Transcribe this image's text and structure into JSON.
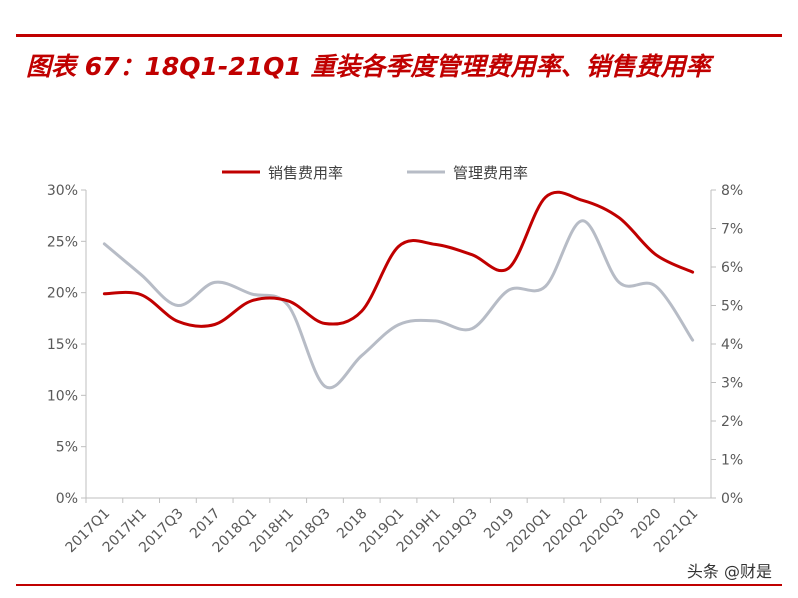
{
  "title": "图表 67：18Q1-21Q1 重装各季度管理费用率、销售费用率",
  "watermark": "头条 @财是",
  "colors": {
    "accent": "#c00000",
    "sales": "#c00000",
    "admin": "#b7bcc6",
    "axis": "#bfbfbf",
    "text": "#595959"
  },
  "chart_data": {
    "type": "line",
    "categories": [
      "2017Q1",
      "2017H1",
      "2017Q3",
      "2017",
      "2018Q1",
      "2018H1",
      "2018Q3",
      "2018",
      "2019Q1",
      "2019H1",
      "2019Q3",
      "2019",
      "2020Q1",
      "2020Q2",
      "2020Q3",
      "2020",
      "2021Q1"
    ],
    "series": [
      {
        "name": "销售费用率",
        "axis": "left",
        "values": [
          19.9,
          19.8,
          17.2,
          16.9,
          19.2,
          19.2,
          17.0,
          18.2,
          24.5,
          24.7,
          23.7,
          22.4,
          29.3,
          29.0,
          27.3,
          23.7,
          22.0
        ]
      },
      {
        "name": "管理费用率",
        "axis": "right",
        "values": [
          6.6,
          5.8,
          5.0,
          5.6,
          5.3,
          5.0,
          2.9,
          3.7,
          4.5,
          4.6,
          4.4,
          5.4,
          5.5,
          7.2,
          5.6,
          5.5,
          4.1
        ]
      }
    ],
    "y_left": {
      "ticks": [
        "0%",
        "5%",
        "10%",
        "15%",
        "20%",
        "25%",
        "30%"
      ],
      "ylim": [
        0,
        30
      ]
    },
    "y_right": {
      "ticks": [
        "0%",
        "1%",
        "2%",
        "3%",
        "4%",
        "5%",
        "6%",
        "7%",
        "8%"
      ],
      "ylim": [
        0,
        8
      ]
    },
    "legend": {
      "position": "top-center"
    },
    "grid": false
  }
}
